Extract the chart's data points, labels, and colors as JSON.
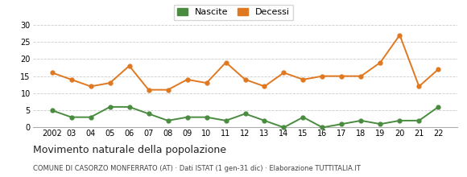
{
  "years": [
    2002,
    2003,
    2004,
    2005,
    2006,
    2007,
    2008,
    2009,
    2010,
    2011,
    2012,
    2013,
    2014,
    2015,
    2016,
    2017,
    2018,
    2019,
    2020,
    2021,
    2022
  ],
  "nascite": [
    5,
    3,
    3,
    6,
    6,
    4,
    2,
    3,
    3,
    2,
    4,
    2,
    0,
    3,
    0,
    1,
    2,
    1,
    2,
    2,
    6
  ],
  "decessi": [
    16,
    14,
    12,
    13,
    18,
    11,
    11,
    14,
    13,
    19,
    14,
    12,
    16,
    14,
    15,
    15,
    15,
    19,
    27,
    12,
    17
  ],
  "nascite_color": "#4a8c3f",
  "decessi_color": "#e07820",
  "ylim": [
    0,
    30
  ],
  "yticks": [
    0,
    5,
    10,
    15,
    20,
    25,
    30
  ],
  "title": "Movimento naturale della popolazione",
  "subtitle": "COMUNE DI CASORZO MONFERRATO (AT) · Dati ISTAT (1 gen-31 dic) · Elaborazione TUTTITALIA.IT",
  "legend_labels": [
    "Nascite",
    "Decessi"
  ],
  "background_color": "#ffffff",
  "grid_color": "#cccccc",
  "marker_size": 3.5,
  "line_width": 1.4
}
